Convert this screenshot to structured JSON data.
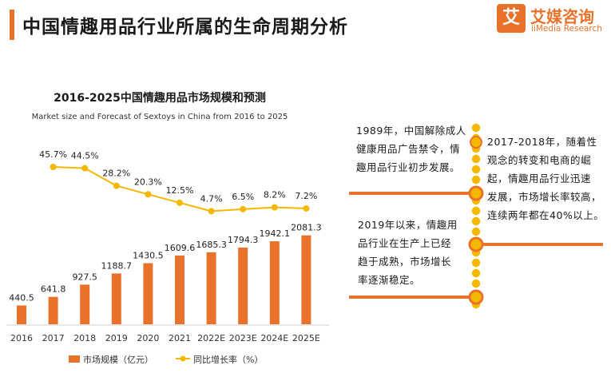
{
  "header": {
    "title": "中国情趣用品行业所属的生命周期分析",
    "logo_glyph": "艾",
    "logo_cn": "艾媒咨询",
    "logo_en": "iiMedia Research"
  },
  "colors": {
    "accent": "#e8722a",
    "line": "#f5b800",
    "text": "#222222"
  },
  "chart_data": {
    "type": "bar",
    "title": "2016-2025中国情趣用品市场规模和预测",
    "subtitle": "Market size and Forecast of Sextoys in China from 2016 to 2025",
    "categories": [
      "2016",
      "2017",
      "2018",
      "2019",
      "2020",
      "2021",
      "2022E",
      "2023E",
      "2024E",
      "2025E"
    ],
    "series": [
      {
        "name": "市场规模（亿元）",
        "type": "bar",
        "values": [
          440.5,
          641.8,
          927.5,
          1188.7,
          1430.5,
          1609.6,
          1685.3,
          1794.3,
          1942.1,
          2081.3
        ],
        "labels": [
          "440.5",
          "641.8",
          "927.5",
          "1188.7",
          "1430.5",
          "1609.6",
          "1685.3",
          "1794.3",
          "1942.1",
          "2081.3"
        ]
      },
      {
        "name": "同比增长率（%）",
        "type": "line",
        "values": [
          null,
          45.7,
          44.5,
          28.2,
          20.3,
          12.5,
          4.7,
          6.5,
          8.2,
          7.2
        ],
        "labels": [
          "",
          "45.7%",
          "44.5%",
          "28.2%",
          "20.3%",
          "12.5%",
          "4.7%",
          "6.5%",
          "8.2%",
          "7.2%"
        ]
      }
    ],
    "legend_position": "bottom"
  },
  "timeline": {
    "stage1": [
      "1989年，中国解除成人",
      "健康用品广告禁令，情",
      "趣用品行业初步发展。"
    ],
    "stage2": [
      "2017-2018年，随着性",
      "观念的转变和电商的崛",
      "起，情趣用品行业迅速",
      "发展，市场增长率较高，",
      "连续两年都在40%以上。"
    ],
    "stage3": [
      "2019年以来，情趣用",
      "品行业在生产上已经",
      "趋于成熟，市场增长",
      "率逐渐稳定。"
    ]
  }
}
